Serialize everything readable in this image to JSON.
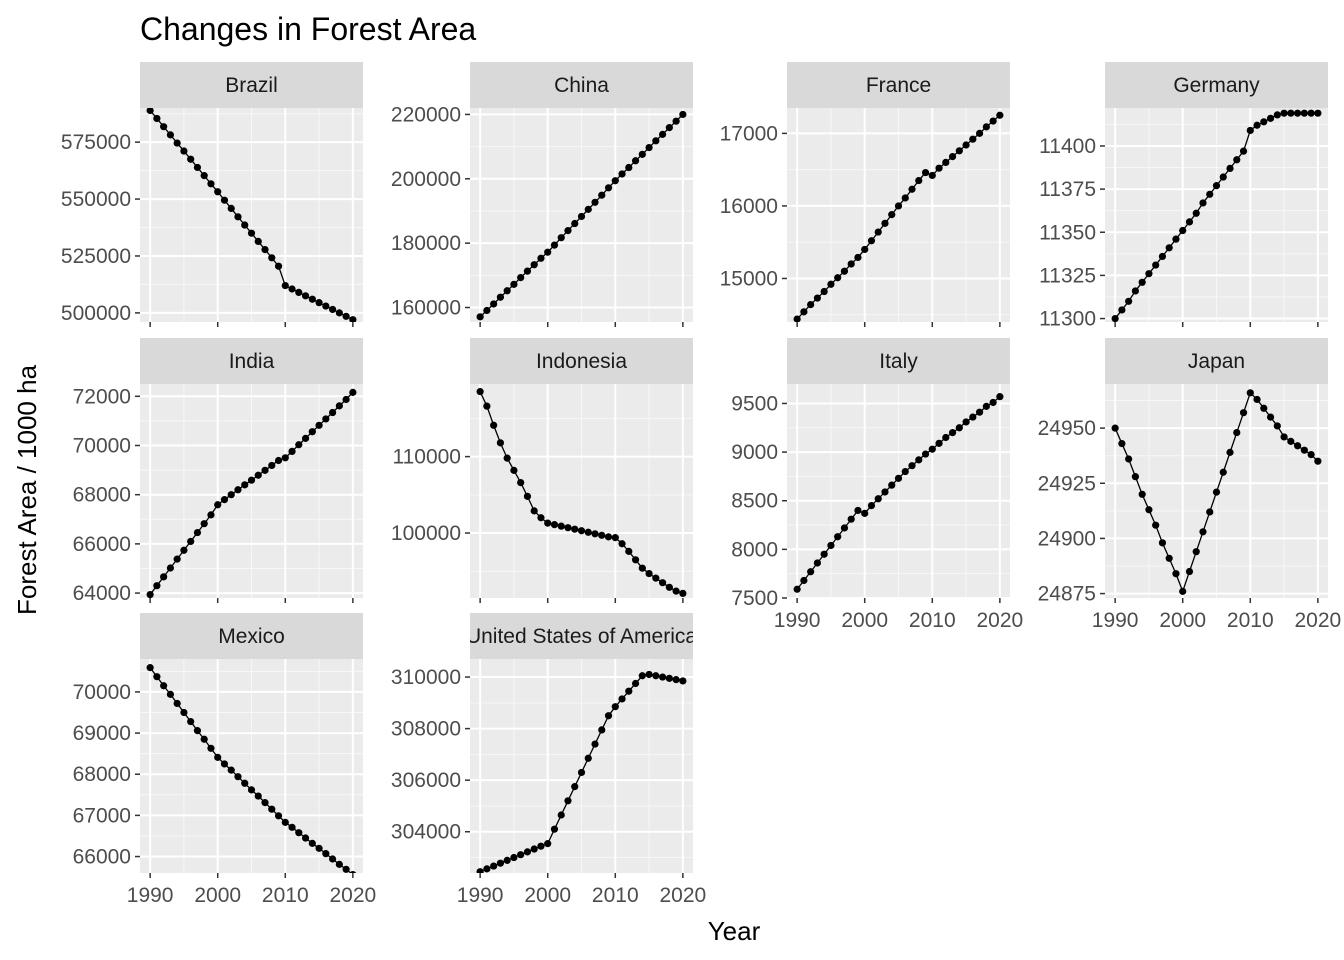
{
  "chart_data": {
    "type": "line",
    "title": "Changes in Forest Area",
    "xlabel": "Year",
    "ylabel": "Forest Area / 1000 ha",
    "grid": true,
    "legend": "none",
    "facets": [
      {
        "name": "Brazil",
        "ylim": [
          496000,
          590000
        ],
        "yticks": [
          500000,
          525000,
          550000,
          575000
        ],
        "x": [
          1990,
          1991,
          1992,
          1993,
          1994,
          1995,
          1996,
          1997,
          1998,
          1999,
          2000,
          2001,
          2002,
          2003,
          2004,
          2005,
          2006,
          2007,
          2008,
          2009,
          2010,
          2011,
          2012,
          2013,
          2014,
          2015,
          2016,
          2017,
          2018,
          2019,
          2020
        ],
        "values": [
          588900,
          585400,
          581800,
          578200,
          574600,
          571100,
          567500,
          563900,
          560300,
          556700,
          553200,
          549500,
          545900,
          542200,
          538600,
          535000,
          531400,
          527800,
          524200,
          520500,
          512000,
          510500,
          509000,
          507500,
          506000,
          504500,
          503000,
          501500,
          500000,
          498500,
          497000
        ]
      },
      {
        "name": "China",
        "ylim": [
          155500,
          222000
        ],
        "yticks": [
          160000,
          180000,
          200000,
          220000
        ],
        "x": [
          1990,
          1991,
          1992,
          1993,
          1994,
          1995,
          1996,
          1997,
          1998,
          1999,
          2000,
          2001,
          2002,
          2003,
          2004,
          2005,
          2006,
          2007,
          2008,
          2009,
          2010,
          2011,
          2012,
          2013,
          2014,
          2015,
          2016,
          2017,
          2018,
          2019,
          2020
        ],
        "values": [
          157100,
          159100,
          161100,
          163200,
          165200,
          167200,
          169300,
          171300,
          173300,
          175300,
          177200,
          179400,
          181700,
          183900,
          186100,
          188300,
          190500,
          192700,
          194900,
          197200,
          199400,
          201500,
          203500,
          205600,
          207600,
          209700,
          211800,
          213800,
          215900,
          217900,
          220000
        ]
      },
      {
        "name": "France",
        "ylim": [
          14400,
          17350
        ],
        "yticks": [
          15000,
          16000,
          17000
        ],
        "x": [
          1990,
          1991,
          1992,
          1993,
          1994,
          1995,
          1996,
          1997,
          1998,
          1999,
          2000,
          2001,
          2002,
          2003,
          2004,
          2005,
          2006,
          2007,
          2008,
          2009,
          2010,
          2011,
          2012,
          2013,
          2014,
          2015,
          2016,
          2017,
          2018,
          2019,
          2020
        ],
        "values": [
          14440,
          14540,
          14640,
          14730,
          14820,
          14920,
          15010,
          15100,
          15200,
          15290,
          15400,
          15520,
          15640,
          15760,
          15880,
          16000,
          16110,
          16230,
          16350,
          16460,
          16420,
          16520,
          16600,
          16680,
          16760,
          16840,
          16920,
          17000,
          17090,
          17170,
          17250
        ]
      },
      {
        "name": "Germany",
        "ylim": [
          11298,
          11422
        ],
        "yticks": [
          11300,
          11325,
          11350,
          11375,
          11400
        ],
        "x": [
          1990,
          1991,
          1992,
          1993,
          1994,
          1995,
          1996,
          1997,
          1998,
          1999,
          2000,
          2001,
          2002,
          2003,
          2004,
          2005,
          2006,
          2007,
          2008,
          2009,
          2010,
          2011,
          2012,
          2013,
          2014,
          2015,
          2016,
          2017,
          2018,
          2019,
          2020
        ],
        "values": [
          11300,
          11305,
          11310,
          11316,
          11321,
          11326,
          11331,
          11336,
          11341,
          11346,
          11351,
          11356,
          11361,
          11367,
          11372,
          11377,
          11382,
          11387,
          11392,
          11397,
          11409,
          11412,
          11414,
          11416,
          11418,
          11419,
          11419,
          11419,
          11419,
          11419,
          11419
        ]
      },
      {
        "name": "India",
        "ylim": [
          63800,
          72500
        ],
        "yticks": [
          64000,
          66000,
          68000,
          70000,
          72000
        ],
        "x": [
          1990,
          1991,
          1992,
          1993,
          1994,
          1995,
          1996,
          1997,
          1998,
          1999,
          2000,
          2001,
          2002,
          2003,
          2004,
          2005,
          2006,
          2007,
          2008,
          2009,
          2010,
          2011,
          2012,
          2013,
          2014,
          2015,
          2016,
          2017,
          2018,
          2019,
          2020
        ],
        "values": [
          63940,
          64300,
          64660,
          65020,
          65380,
          65740,
          66100,
          66460,
          66820,
          67180,
          67590,
          67800,
          68000,
          68200,
          68400,
          68590,
          68790,
          68990,
          69190,
          69390,
          69500,
          69760,
          70030,
          70290,
          70560,
          70820,
          71080,
          71340,
          71610,
          71870,
          72160
        ]
      },
      {
        "name": "Indonesia",
        "ylim": [
          91500,
          119500
        ],
        "yticks": [
          100000,
          110000
        ],
        "x": [
          1990,
          1991,
          1992,
          1993,
          1994,
          1995,
          1996,
          1997,
          1998,
          1999,
          2000,
          2001,
          2002,
          2003,
          2004,
          2005,
          2006,
          2007,
          2008,
          2009,
          2010,
          2011,
          2012,
          2013,
          2014,
          2015,
          2016,
          2017,
          2018,
          2019,
          2020
        ],
        "values": [
          118500,
          116600,
          114100,
          111800,
          109800,
          108200,
          106600,
          104800,
          102900,
          102000,
          101300,
          101100,
          100900,
          100700,
          100500,
          100300,
          100100,
          99900,
          99700,
          99500,
          99400,
          98600,
          97600,
          96500,
          95400,
          94700,
          94100,
          93500,
          92900,
          92400,
          92100
        ]
      },
      {
        "name": "Italy",
        "ylim": [
          7500,
          9700
        ],
        "yticks": [
          7500,
          8000,
          8500,
          9000,
          9500
        ],
        "x": [
          1990,
          1991,
          1992,
          1993,
          1994,
          1995,
          1996,
          1997,
          1998,
          1999,
          2000,
          2001,
          2002,
          2003,
          2004,
          2005,
          2006,
          2007,
          2008,
          2009,
          2010,
          2011,
          2012,
          2013,
          2014,
          2015,
          2016,
          2017,
          2018,
          2019,
          2020
        ],
        "values": [
          7590,
          7680,
          7770,
          7860,
          7950,
          8040,
          8130,
          8220,
          8310,
          8400,
          8370,
          8450,
          8520,
          8590,
          8660,
          8730,
          8800,
          8860,
          8920,
          8980,
          9030,
          9090,
          9150,
          9200,
          9250,
          9310,
          9360,
          9410,
          9470,
          9510,
          9570
        ]
      },
      {
        "name": "Japan",
        "ylim": [
          24873,
          24970
        ],
        "yticks": [
          24875,
          24900,
          24925,
          24950
        ],
        "x": [
          1990,
          1991,
          1992,
          1993,
          1994,
          1995,
          1996,
          1997,
          1998,
          1999,
          2000,
          2001,
          2002,
          2003,
          2004,
          2005,
          2006,
          2007,
          2008,
          2009,
          2010,
          2011,
          2012,
          2013,
          2014,
          2015,
          2016,
          2017,
          2018,
          2019,
          2020
        ],
        "values": [
          24950,
          24943,
          24936,
          24928,
          24920,
          24913,
          24906,
          24898,
          24891,
          24884,
          24876,
          24885,
          24894,
          24903,
          24912,
          24921,
          24930,
          24939,
          24948,
          24957,
          24966,
          24963,
          24959,
          24955,
          24951,
          24946,
          24944,
          24942,
          24940,
          24938,
          24935
        ]
      },
      {
        "name": "Mexico",
        "ylim": [
          65600,
          70800
        ],
        "yticks": [
          66000,
          67000,
          68000,
          69000,
          70000
        ],
        "x": [
          1990,
          1991,
          1992,
          1993,
          1994,
          1995,
          1996,
          1997,
          1998,
          1999,
          2000,
          2001,
          2002,
          2003,
          2004,
          2005,
          2006,
          2007,
          2008,
          2009,
          2010,
          2011,
          2012,
          2013,
          2014,
          2015,
          2016,
          2017,
          2018,
          2019,
          2020
        ],
        "values": [
          70590,
          70370,
          70150,
          69940,
          69720,
          69500,
          69280,
          69060,
          68850,
          68630,
          68410,
          68250,
          68100,
          67940,
          67780,
          67620,
          67470,
          67310,
          67150,
          66990,
          66830,
          66710,
          66580,
          66450,
          66320,
          66200,
          66070,
          65940,
          65810,
          65690,
          65560
        ]
      },
      {
        "name": "United States of America",
        "ylim": [
          302400,
          310700
        ],
        "yticks": [
          304000,
          306000,
          308000,
          310000
        ],
        "x": [
          1990,
          1991,
          1992,
          1993,
          1994,
          1995,
          1996,
          1997,
          1998,
          1999,
          2000,
          2001,
          2002,
          2003,
          2004,
          2005,
          2006,
          2007,
          2008,
          2009,
          2010,
          2011,
          2012,
          2013,
          2014,
          2015,
          2016,
          2017,
          2018,
          2019,
          2020
        ],
        "values": [
          302450,
          302560,
          302670,
          302780,
          302890,
          303000,
          303110,
          303220,
          303330,
          303440,
          303540,
          304100,
          304650,
          305200,
          305750,
          306300,
          306850,
          307400,
          307950,
          308500,
          308850,
          309150,
          309450,
          309750,
          310050,
          310100,
          310050,
          310000,
          309950,
          309900,
          309850
        ]
      }
    ]
  }
}
